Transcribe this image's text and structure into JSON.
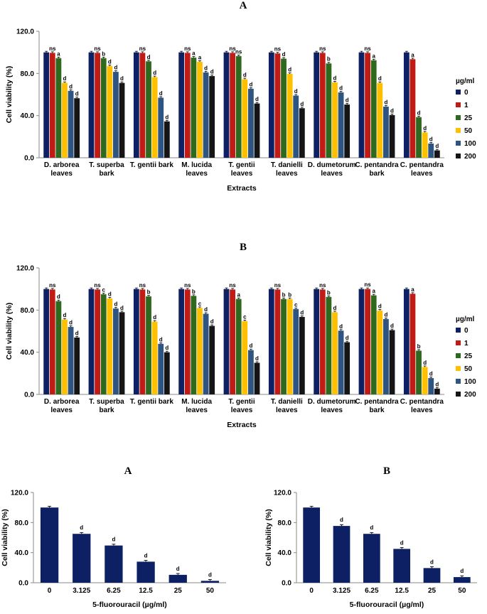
{
  "colors": {
    "0": "#0d2063",
    "1": "#c11b16",
    "25": "#2e6a1e",
    "50": "#ffc000",
    "100": "#2e5581",
    "200": "#151515",
    "fu": "#0d2063"
  },
  "chart_data": [
    {
      "type": "bar",
      "panel": "A",
      "ylabel": "Cell viability (%)",
      "xlabel": "Extracts",
      "ylim": [
        0,
        120
      ],
      "yticks": [
        "0.0",
        "40.0",
        "80.0",
        "120.0"
      ],
      "legend_title": "µg/ml",
      "legend_position": "right",
      "categories": [
        [
          "D. arborea",
          "leaves"
        ],
        [
          "T. superba",
          "bark"
        ],
        [
          "T. gentii bark"
        ],
        [
          "M. lucida",
          "leaves"
        ],
        [
          "T. gentii",
          "leaves"
        ],
        [
          "T. danielli",
          "leaves"
        ],
        [
          "D. dumetorum",
          "leaves"
        ],
        [
          "C. pentandra",
          "bark"
        ],
        [
          "C. pentandra",
          "leaves"
        ]
      ],
      "series": [
        {
          "name": "0",
          "values": [
            100,
            100,
            100,
            100,
            100,
            100,
            100,
            100,
            100
          ]
        },
        {
          "name": "1",
          "values": [
            99.5,
            99.5,
            99.5,
            99.5,
            99.5,
            99,
            99.5,
            99.5,
            93.5
          ]
        },
        {
          "name": "25",
          "values": [
            94.5,
            94.5,
            91.5,
            95,
            96.5,
            94,
            89.5,
            92.5,
            38.5
          ]
        },
        {
          "name": "50",
          "values": [
            71,
            87,
            76.5,
            91,
            74.5,
            79.5,
            71.5,
            71,
            24
          ]
        },
        {
          "name": "100",
          "values": [
            63.5,
            81.5,
            57,
            81,
            65.5,
            59,
            62,
            48.5,
            13.5
          ]
        },
        {
          "name": "200",
          "values": [
            56.5,
            71,
            34.5,
            77.5,
            51.5,
            47,
            50.5,
            40.5,
            7
          ]
        }
      ],
      "significance": [
        [
          "ns",
          "a",
          "d",
          "d",
          "d"
        ],
        [
          "ns",
          "b",
          "d",
          "d",
          "d"
        ],
        [
          "ns",
          "d",
          "d",
          "d",
          "d"
        ],
        [
          "ns",
          "a",
          "a",
          "d",
          "d"
        ],
        [
          "ns",
          "ns",
          "d",
          "d",
          "d"
        ],
        [
          "ns",
          "d",
          "d",
          "d",
          "d"
        ],
        [
          "ns",
          "b",
          "d",
          "d",
          "d"
        ],
        [
          "ns",
          "a",
          "d",
          "d",
          "d"
        ],
        [
          "a",
          "d",
          "d",
          "d",
          "d"
        ]
      ]
    },
    {
      "type": "bar",
      "panel": "B",
      "ylabel": "Cell viability (%)",
      "xlabel": "Extracts",
      "ylim": [
        0,
        120
      ],
      "yticks": [
        "0.0",
        "40.0",
        "80.0",
        "120.0"
      ],
      "legend_title": "µg/ml",
      "legend_position": "right",
      "categories": [
        [
          "D. arborea",
          "leaves"
        ],
        [
          "T. superba",
          "bark"
        ],
        [
          "T. gentii bark"
        ],
        [
          "M. lucida",
          "leaves"
        ],
        [
          "T. gentii",
          "leaves"
        ],
        [
          "T. danielli",
          "leaves"
        ],
        [
          "D. dumetorum",
          "leaves"
        ],
        [
          "C. pentandra",
          "bark"
        ],
        [
          "C. pentandra",
          "leaves"
        ]
      ],
      "series": [
        {
          "name": "0",
          "values": [
            100,
            100,
            100,
            100,
            100,
            100,
            100,
            100,
            100
          ]
        },
        {
          "name": "1",
          "values": [
            99.5,
            99.5,
            99.5,
            99.5,
            99.5,
            99.5,
            99.5,
            100,
            95.5
          ]
        },
        {
          "name": "25",
          "values": [
            88.5,
            95,
            93,
            93.5,
            90.5,
            90.5,
            92.5,
            94,
            41.5
          ]
        },
        {
          "name": "50",
          "values": [
            71,
            91,
            69,
            82,
            69.5,
            90.5,
            78,
            79.5,
            26
          ]
        },
        {
          "name": "100",
          "values": [
            64,
            81.5,
            48,
            76.5,
            42,
            81,
            60.5,
            71.5,
            15.5
          ]
        },
        {
          "name": "200",
          "values": [
            54,
            78,
            40,
            65,
            30,
            73.5,
            49.5,
            61,
            5.5
          ]
        }
      ],
      "significance": [
        [
          "ns",
          "d",
          "d",
          "d",
          "d"
        ],
        [
          "ns",
          "c",
          "d",
          "d",
          "d"
        ],
        [
          "ns",
          "b",
          "d",
          "d",
          "d"
        ],
        [
          "ns",
          "b",
          "c",
          "d",
          "d"
        ],
        [
          "ns",
          "a",
          "c",
          "d",
          "d"
        ],
        [
          "ns",
          "b",
          "b",
          "c",
          "d"
        ],
        [
          "ns",
          "b",
          "d",
          "d",
          "d"
        ],
        [
          "ns",
          "a",
          "d",
          "d",
          "d"
        ],
        [
          "a",
          "b",
          "d",
          "d",
          "d"
        ]
      ]
    },
    {
      "type": "bar",
      "panel": "A",
      "ylabel": "Cell viability (%)",
      "xlabel": "5-fluorouracil (µg/ml)",
      "ylim": [
        0,
        120
      ],
      "yticks": [
        "0.0",
        "40.0",
        "80.0",
        "120.0"
      ],
      "categories": [
        "0",
        "3.125",
        "6.25",
        "12.5",
        "25",
        "50"
      ],
      "values": [
        100,
        65,
        49.5,
        28,
        10.5,
        2.5
      ],
      "significance": [
        "",
        "d",
        "d",
        "d",
        "d",
        "d"
      ]
    },
    {
      "type": "bar",
      "panel": "B",
      "ylabel": "Cell viability (%)",
      "xlabel": "5-fluorouracil (µg/ml)",
      "ylim": [
        0,
        120
      ],
      "yticks": [
        "0.0",
        "40.0",
        "80.0",
        "120.0"
      ],
      "categories": [
        "0",
        "3.125",
        "6.25",
        "12.5",
        "25",
        "50"
      ],
      "values": [
        100,
        75.5,
        65,
        45,
        19.5,
        7.5
      ],
      "significance": [
        "",
        "d",
        "d",
        "d",
        "d",
        "d"
      ]
    }
  ]
}
